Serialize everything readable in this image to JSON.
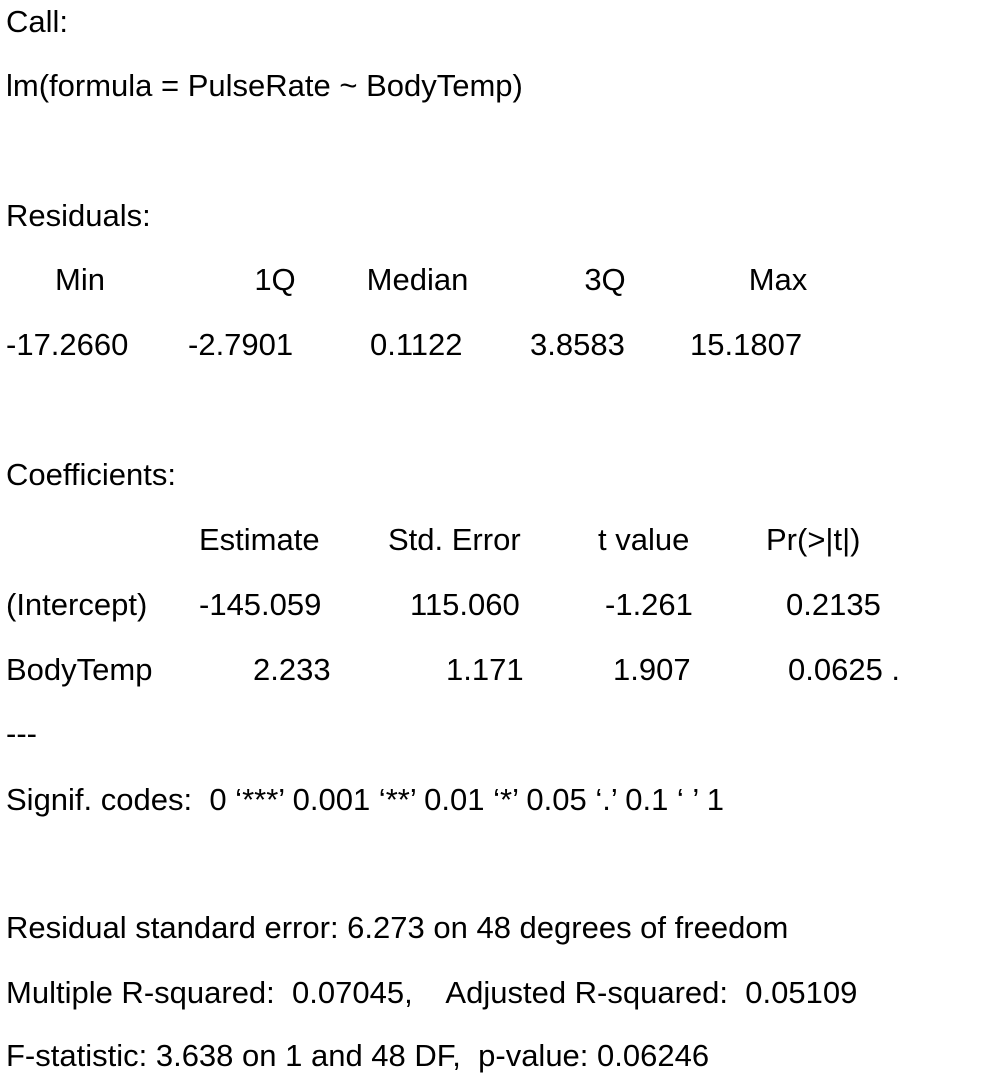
{
  "call": {
    "label": "Call:",
    "formula": "lm(formula = PulseRate ~ BodyTemp)"
  },
  "residuals": {
    "label": "Residuals:",
    "headers": [
      "Min",
      "1Q",
      "Median",
      "3Q",
      "Max"
    ],
    "values": [
      "-17.2660",
      "-2.7901",
      "0.1122",
      "3.8583",
      "15.1807"
    ]
  },
  "coefficients": {
    "label": "Coefficients:",
    "headers": [
      "Estimate",
      "Std. Error",
      "t value",
      "Pr(>|t|)"
    ],
    "rows": [
      {
        "name": "(Intercept)",
        "estimate": "-145.059",
        "std_error": "115.060",
        "t_value": "-1.261",
        "p_value": "0.2135"
      },
      {
        "name": "BodyTemp",
        "estimate": "2.233",
        "std_error": "1.171",
        "t_value": "1.907",
        "p_value": "0.0625 ."
      }
    ]
  },
  "separator": "---",
  "signif_codes": "Signif. codes:  0 ‘***’ 0.001 ‘**’ 0.01 ‘*’ 0.05 ‘.’ 0.1 ‘ ’ 1",
  "summary": {
    "residual_std_error": "Residual standard error: 6.273 on 48 degrees of freedom",
    "r_squared": "Multiple R-squared:  0.07045,    Adjusted R-squared:  0.05109",
    "f_statistic": "F-statistic: 3.638 on 1 and 48 DF,  p-value: 0.06246"
  }
}
